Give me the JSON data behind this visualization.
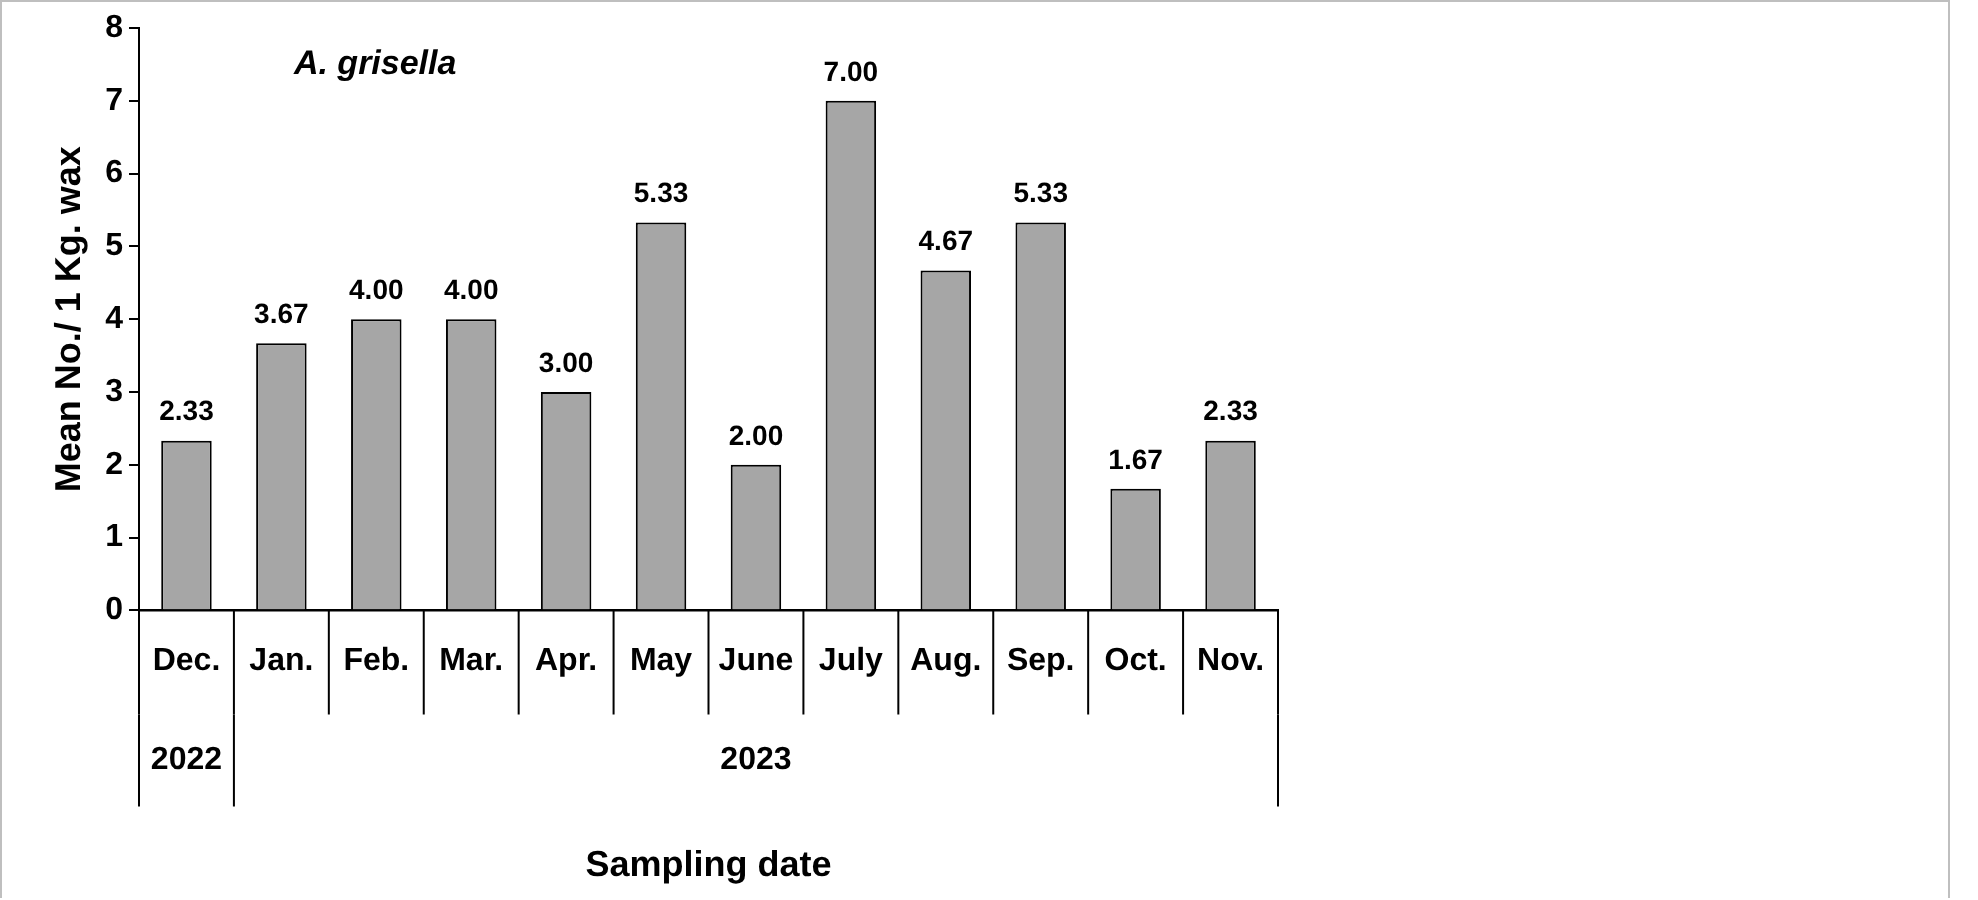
{
  "chart_data": {
    "type": "bar",
    "title": "A. grisella",
    "xlabel": "Sampling date",
    "ylabel": "Mean No./ 1 Kg. wax",
    "categories": [
      "Dec.",
      "Jan.",
      "Feb.",
      "Mar.",
      "Apr.",
      "May",
      "June",
      "July",
      "Aug.",
      "Sep.",
      "Oct.",
      "Nov."
    ],
    "values": [
      2.33,
      3.67,
      4.0,
      4.0,
      3.0,
      5.33,
      2.0,
      7.0,
      4.67,
      5.33,
      1.67,
      2.33
    ],
    "value_labels": [
      "2.33",
      "3.67",
      "4.00",
      "4.00",
      "3.00",
      "5.33",
      "2.00",
      "7.00",
      "4.67",
      "5.33",
      "1.67",
      "2.33"
    ],
    "color": "#a6a6a6",
    "ylim": [
      0,
      8
    ],
    "yticks": [
      0,
      1,
      2,
      3,
      4,
      5,
      6,
      7,
      8
    ],
    "grid": false,
    "legend": false,
    "annotations": [
      "2022",
      "2023"
    ]
  }
}
